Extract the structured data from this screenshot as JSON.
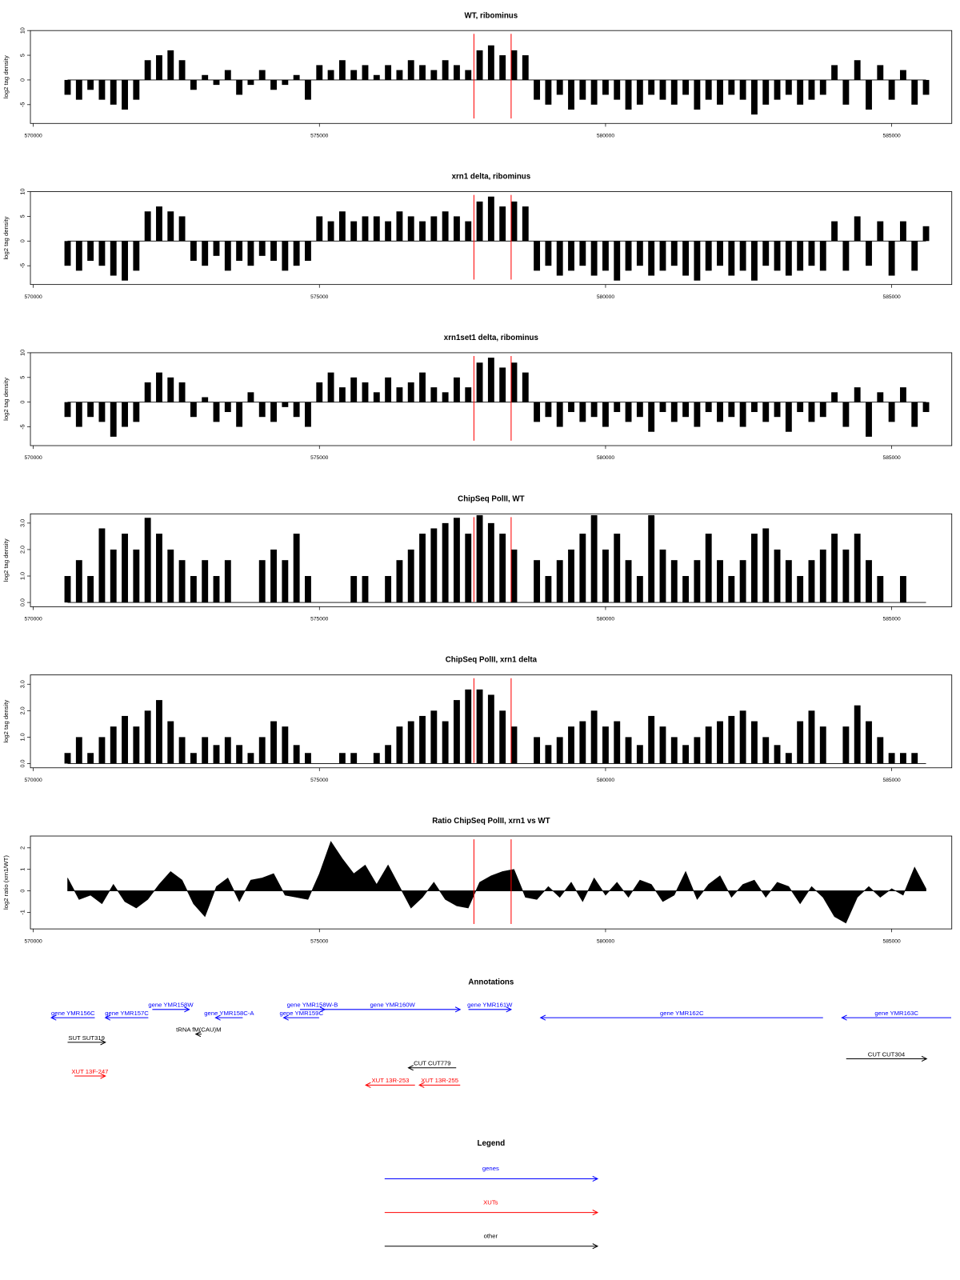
{
  "chart_data": [
    {
      "type": "bar",
      "title": "WT, ribominus",
      "ylabel": "log2 tag density",
      "color": "#000000",
      "x": [
        570600,
        570800,
        571000,
        571200,
        571400,
        571600,
        571800,
        572000,
        572200,
        572400,
        572600,
        572800,
        573000,
        573200,
        573400,
        573600,
        573800,
        574000,
        574200,
        574400,
        574600,
        574800,
        575000,
        575200,
        575400,
        575600,
        575800,
        576000,
        576200,
        576400,
        576600,
        576800,
        577000,
        577200,
        577400,
        577600,
        577800,
        578000,
        578200,
        578400,
        578600,
        578800,
        579000,
        579200,
        579400,
        579600,
        579800,
        580000,
        580200,
        580400,
        580600,
        580800,
        581000,
        581200,
        581400,
        581600,
        581800,
        582000,
        582200,
        582400,
        582600,
        582800,
        583000,
        583200,
        583400,
        583600,
        583800,
        584000,
        584200,
        584400,
        584600,
        584800,
        585000,
        585200,
        585400,
        585600
      ],
      "values": [
        -3,
        -4,
        -2,
        -4,
        -5,
        -6,
        -4,
        4,
        5,
        6,
        4,
        -2,
        1,
        -1,
        2,
        -3,
        -1,
        2,
        -2,
        -1,
        1,
        -4,
        3,
        2,
        4,
        2,
        3,
        1,
        3,
        2,
        4,
        3,
        2,
        4,
        3,
        2,
        6,
        7,
        5,
        6,
        5,
        -4,
        -5,
        -3,
        -6,
        -4,
        -5,
        -3,
        -4,
        -6,
        -5,
        -3,
        -4,
        -5,
        -3,
        -6,
        -4,
        -5,
        -3,
        -4,
        -7,
        -5,
        -4,
        -3,
        -5,
        -4,
        -3,
        3,
        -5,
        4,
        -6,
        3,
        -4,
        2,
        -5,
        -3
      ],
      "xlim": [
        569950,
        586050
      ],
      "xticks": [
        570000,
        575000,
        580000,
        585000
      ],
      "ylim": [
        -8.8,
        10
      ],
      "yticks": [
        -5,
        0,
        5,
        10
      ],
      "vlines": [
        577700,
        578350
      ],
      "vline_color": "#ff0000"
    },
    {
      "type": "bar",
      "title": "xrn1 delta, ribominus",
      "ylabel": "log2 tag density",
      "color": "#000000",
      "x": [
        570600,
        570800,
        571000,
        571200,
        571400,
        571600,
        571800,
        572000,
        572200,
        572400,
        572600,
        572800,
        573000,
        573200,
        573400,
        573600,
        573800,
        574000,
        574200,
        574400,
        574600,
        574800,
        575000,
        575200,
        575400,
        575600,
        575800,
        576000,
        576200,
        576400,
        576600,
        576800,
        577000,
        577200,
        577400,
        577600,
        577800,
        578000,
        578200,
        578400,
        578600,
        578800,
        579000,
        579200,
        579400,
        579600,
        579800,
        580000,
        580200,
        580400,
        580600,
        580800,
        581000,
        581200,
        581400,
        581600,
        581800,
        582000,
        582200,
        582400,
        582600,
        582800,
        583000,
        583200,
        583400,
        583600,
        583800,
        584000,
        584200,
        584400,
        584600,
        584800,
        585000,
        585200,
        585400,
        585600
      ],
      "values": [
        -5,
        -6,
        -4,
        -5,
        -7,
        -8,
        -6,
        6,
        7,
        6,
        5,
        -4,
        -5,
        -3,
        -6,
        -4,
        -5,
        -3,
        -4,
        -6,
        -5,
        -4,
        5,
        4,
        6,
        4,
        5,
        5,
        4,
        6,
        5,
        4,
        5,
        6,
        5,
        4,
        8,
        9,
        7,
        8,
        7,
        -6,
        -5,
        -7,
        -6,
        -5,
        -7,
        -6,
        -8,
        -6,
        -5,
        -7,
        -6,
        -5,
        -7,
        -8,
        -6,
        -5,
        -7,
        -6,
        -8,
        -5,
        -6,
        -7,
        -6,
        -5,
        -6,
        4,
        -6,
        5,
        -5,
        4,
        -7,
        4,
        -6,
        3
      ],
      "xlim": [
        569950,
        586050
      ],
      "xticks": [
        570000,
        575000,
        580000,
        585000
      ],
      "ylim": [
        -8.8,
        10
      ],
      "yticks": [
        -5,
        0,
        5,
        10
      ],
      "vlines": [
        577700,
        578350
      ],
      "vline_color": "#ff0000"
    },
    {
      "type": "bar",
      "title": "xrn1set1 delta, ribominus",
      "ylabel": "log2 tag density",
      "color": "#000000",
      "x": [
        570600,
        570800,
        571000,
        571200,
        571400,
        571600,
        571800,
        572000,
        572200,
        572400,
        572600,
        572800,
        573000,
        573200,
        573400,
        573600,
        573800,
        574000,
        574200,
        574400,
        574600,
        574800,
        575000,
        575200,
        575400,
        575600,
        575800,
        576000,
        576200,
        576400,
        576600,
        576800,
        577000,
        577200,
        577400,
        577600,
        577800,
        578000,
        578200,
        578400,
        578600,
        578800,
        579000,
        579200,
        579400,
        579600,
        579800,
        580000,
        580200,
        580400,
        580600,
        580800,
        581000,
        581200,
        581400,
        581600,
        581800,
        582000,
        582200,
        582400,
        582600,
        582800,
        583000,
        583200,
        583400,
        583600,
        583800,
        584000,
        584200,
        584400,
        584600,
        584800,
        585000,
        585200,
        585400,
        585600
      ],
      "values": [
        -3,
        -5,
        -3,
        -4,
        -7,
        -5,
        -4,
        4,
        6,
        5,
        4,
        -3,
        1,
        -4,
        -2,
        -5,
        2,
        -3,
        -4,
        -1,
        -3,
        -5,
        4,
        6,
        3,
        5,
        4,
        2,
        5,
        3,
        4,
        6,
        3,
        2,
        5,
        3,
        8,
        9,
        7,
        8,
        6,
        -4,
        -3,
        -5,
        -2,
        -4,
        -3,
        -5,
        -2,
        -4,
        -3,
        -6,
        -2,
        -4,
        -3,
        -5,
        -2,
        -4,
        -3,
        -5,
        -2,
        -4,
        -3,
        -6,
        -2,
        -4,
        -3,
        2,
        -5,
        3,
        -7,
        2,
        -4,
        3,
        -5,
        -2
      ],
      "xlim": [
        569950,
        586050
      ],
      "xticks": [
        570000,
        575000,
        580000,
        585000
      ],
      "ylim": [
        -8.8,
        10
      ],
      "yticks": [
        -5,
        0,
        5,
        10
      ],
      "vlines": [
        577700,
        578350
      ],
      "vline_color": "#ff0000"
    },
    {
      "type": "bar",
      "title": "ChipSeq PolII, WT",
      "ylabel": "log2 tag density",
      "color": "#000000",
      "x": [
        570600,
        570800,
        571000,
        571200,
        571400,
        571600,
        571800,
        572000,
        572200,
        572400,
        572600,
        572800,
        573000,
        573200,
        573400,
        573600,
        573800,
        574000,
        574200,
        574400,
        574600,
        574800,
        575000,
        575200,
        575400,
        575600,
        575800,
        576000,
        576200,
        576400,
        576600,
        576800,
        577000,
        577200,
        577400,
        577600,
        577800,
        578000,
        578200,
        578400,
        578600,
        578800,
        579000,
        579200,
        579400,
        579600,
        579800,
        580000,
        580200,
        580400,
        580600,
        580800,
        581000,
        581200,
        581400,
        581600,
        581800,
        582000,
        582200,
        582400,
        582600,
        582800,
        583000,
        583200,
        583400,
        583600,
        583800,
        584000,
        584200,
        584400,
        584600,
        584800,
        585000,
        585200,
        585400,
        585600
      ],
      "values": [
        1.0,
        1.6,
        1.0,
        2.8,
        2.0,
        2.6,
        2.0,
        3.2,
        2.6,
        2.0,
        1.6,
        1.0,
        1.6,
        1.0,
        1.6,
        0,
        0,
        1.6,
        2.0,
        1.6,
        2.6,
        1.0,
        0,
        0,
        0,
        1.0,
        1.0,
        0,
        1.0,
        1.6,
        2.0,
        2.6,
        2.8,
        3.0,
        3.2,
        2.6,
        3.3,
        3.0,
        2.6,
        2.0,
        0,
        1.6,
        1.0,
        1.6,
        2.0,
        2.6,
        3.3,
        2.0,
        2.6,
        1.6,
        1.0,
        3.3,
        2.0,
        1.6,
        1.0,
        1.6,
        2.6,
        1.6,
        1.0,
        1.6,
        2.6,
        2.8,
        2.0,
        1.6,
        1.0,
        1.6,
        2.0,
        2.6,
        2.0,
        2.6,
        1.6,
        1.0,
        0,
        1.0,
        0,
        0
      ],
      "xlim": [
        569950,
        586050
      ],
      "xticks": [
        570000,
        575000,
        580000,
        585000
      ],
      "ylim": [
        -0.16,
        3.35
      ],
      "yticks": [
        {
          "value": 0,
          "label": "0.0"
        },
        {
          "value": 1,
          "label": "1.0"
        },
        {
          "value": 2,
          "label": "2.0"
        },
        {
          "value": 3,
          "label": "3.0"
        }
      ],
      "vlines": [
        577700,
        578350
      ],
      "vline_color": "#ff0000"
    },
    {
      "type": "bar",
      "title": "ChipSeq PolII, xrn1 delta",
      "ylabel": "log2 tag density",
      "color": "#000000",
      "x": [
        570600,
        570800,
        571000,
        571200,
        571400,
        571600,
        571800,
        572000,
        572200,
        572400,
        572600,
        572800,
        573000,
        573200,
        573400,
        573600,
        573800,
        574000,
        574200,
        574400,
        574600,
        574800,
        575000,
        575200,
        575400,
        575600,
        575800,
        576000,
        576200,
        576400,
        576600,
        576800,
        577000,
        577200,
        577400,
        577600,
        577800,
        578000,
        578200,
        578400,
        578600,
        578800,
        579000,
        579200,
        579400,
        579600,
        579800,
        580000,
        580200,
        580400,
        580600,
        580800,
        581000,
        581200,
        581400,
        581600,
        581800,
        582000,
        582200,
        582400,
        582600,
        582800,
        583000,
        583200,
        583400,
        583600,
        583800,
        584000,
        584200,
        584400,
        584600,
        584800,
        585000,
        585200,
        585400,
        585600
      ],
      "values": [
        0.4,
        1.0,
        0.4,
        1.0,
        1.4,
        1.8,
        1.4,
        2.0,
        2.4,
        1.6,
        1.0,
        0.4,
        1.0,
        0.7,
        1.0,
        0.7,
        0.4,
        1.0,
        1.6,
        1.4,
        0.7,
        0.4,
        0,
        0,
        0.4,
        0.4,
        0,
        0.4,
        0.7,
        1.4,
        1.6,
        1.8,
        2.0,
        1.6,
        2.4,
        2.8,
        2.8,
        2.6,
        2.0,
        1.4,
        0,
        1.0,
        0.7,
        1.0,
        1.4,
        1.6,
        2.0,
        1.4,
        1.6,
        1.0,
        0.7,
        1.8,
        1.4,
        1.0,
        0.7,
        1.0,
        1.4,
        1.6,
        1.8,
        2.0,
        1.6,
        1.0,
        0.7,
        0.4,
        1.6,
        2.0,
        1.4,
        0,
        1.4,
        2.2,
        1.6,
        1.0,
        0.4,
        0.4,
        0.4,
        0
      ],
      "xlim": [
        569950,
        586050
      ],
      "xticks": [
        570000,
        575000,
        580000,
        585000
      ],
      "ylim": [
        -0.16,
        3.35
      ],
      "yticks": [
        {
          "value": 0,
          "label": "0.0"
        },
        {
          "value": 1,
          "label": "1.0"
        },
        {
          "value": 2,
          "label": "2.0"
        },
        {
          "value": 3,
          "label": "3.0"
        }
      ],
      "vlines": [
        577700,
        578350
      ],
      "vline_color": "#ff0000"
    },
    {
      "type": "area",
      "title": "Ratio ChipSeq PolII, xrn1 vs WT",
      "ylabel": "log2 ratio (xrn1/WT)",
      "color": "#000000",
      "x": [
        570600,
        570800,
        571000,
        571200,
        571400,
        571600,
        571800,
        572000,
        572200,
        572400,
        572600,
        572800,
        573000,
        573200,
        573400,
        573600,
        573800,
        574000,
        574200,
        574400,
        574600,
        574800,
        575000,
        575200,
        575400,
        575600,
        575800,
        576000,
        576200,
        576400,
        576600,
        576800,
        577000,
        577200,
        577400,
        577600,
        577800,
        578000,
        578200,
        578400,
        578600,
        578800,
        579000,
        579200,
        579400,
        579600,
        579800,
        580000,
        580200,
        580400,
        580600,
        580800,
        581000,
        581200,
        581400,
        581600,
        581800,
        582000,
        582200,
        582400,
        582600,
        582800,
        583000,
        583200,
        583400,
        583600,
        583800,
        584000,
        584200,
        584400,
        584600,
        584800,
        585000,
        585200,
        585400,
        585600
      ],
      "values": [
        0.6,
        -0.4,
        -0.2,
        -0.6,
        0.3,
        -0.5,
        -0.8,
        -0.4,
        0.3,
        0.9,
        0.5,
        -0.6,
        -1.2,
        0.2,
        0.6,
        -0.5,
        0.5,
        0.6,
        0.8,
        -0.2,
        -0.3,
        -0.4,
        0.8,
        2.3,
        1.5,
        0.8,
        1.2,
        0.3,
        1.2,
        0.2,
        -0.8,
        -0.3,
        0.4,
        -0.4,
        -0.7,
        -0.8,
        0.4,
        0.7,
        0.9,
        1.0,
        -0.3,
        -0.4,
        0.2,
        -0.3,
        0.4,
        -0.5,
        0.6,
        -0.2,
        0.4,
        -0.3,
        0.5,
        0.3,
        -0.5,
        -0.2,
        0.9,
        -0.4,
        0.3,
        0.7,
        -0.3,
        0.3,
        0.5,
        -0.3,
        0.4,
        0.2,
        -0.6,
        0.2,
        -0.3,
        -1.2,
        -1.5,
        -0.3,
        0.2,
        -0.3,
        0.1,
        -0.2,
        1.1,
        0.1
      ],
      "xlim": [
        569950,
        586050
      ],
      "xticks": [
        570000,
        575000,
        580000,
        585000
      ],
      "ylim": [
        -1.77,
        2.55
      ],
      "yticks": [
        -1,
        0,
        1,
        2
      ],
      "vlines": [
        577700,
        578350
      ],
      "vline_color": "#ff0000"
    }
  ],
  "annotations": {
    "title": "Annotations",
    "xlim": [
      569950,
      586050
    ],
    "features": [
      {
        "label": "gene YMR156C",
        "start": 570315,
        "end": 571075,
        "strand": "-",
        "color": "#0000ff"
      },
      {
        "label": "gene YMR157C",
        "start": 571260,
        "end": 572010,
        "strand": "-",
        "color": "#0000ff"
      },
      {
        "label": "gene YMR158W",
        "start": 572080,
        "end": 572725,
        "strand": "+",
        "color": "#0000ff"
      },
      {
        "label": "gene YMR158C-A",
        "start": 573185,
        "end": 573660,
        "strand": "-",
        "color": "#0000ff"
      },
      {
        "label": "tRNA fM(CAU)M",
        "start": 572840,
        "end": 572940,
        "strand": "-",
        "color": "#000000"
      },
      {
        "label": "SUT SUT319",
        "start": 570600,
        "end": 571260,
        "strand": "+",
        "color": "#000000"
      },
      {
        "label": "XUT 13F-247",
        "start": 570720,
        "end": 571260,
        "strand": "+",
        "color": "#ff0000"
      },
      {
        "label": "gene YMR158W-B",
        "start": 574660,
        "end": 575095,
        "strand": "+",
        "color": "#0000ff"
      },
      {
        "label": "gene YMR159C",
        "start": 574375,
        "end": 574995,
        "strand": "-",
        "color": "#0000ff"
      },
      {
        "label": "gene YMR160W",
        "start": 575095,
        "end": 577460,
        "strand": "+",
        "color": "#0000ff"
      },
      {
        "label": "gene YMR161W",
        "start": 577605,
        "end": 578350,
        "strand": "+",
        "color": "#0000ff"
      },
      {
        "label": "gene YMR162C",
        "start": 578865,
        "end": 583800,
        "strand": "-",
        "color": "#0000ff"
      },
      {
        "label": "gene YMR163C",
        "start": 584130,
        "end": 586040,
        "strand": "-",
        "color": "#0000ff"
      },
      {
        "label": "CUT CUT779",
        "start": 576555,
        "end": 577390,
        "strand": "-",
        "color": "#000000"
      },
      {
        "label": "XUT 13R-253",
        "start": 575810,
        "end": 576670,
        "strand": "-",
        "color": "#ff0000"
      },
      {
        "label": "XUT 13R-255",
        "start": 576745,
        "end": 577460,
        "strand": "-",
        "color": "#ff0000"
      },
      {
        "label": "CUT CUT304",
        "start": 584205,
        "end": 585610,
        "strand": "+",
        "color": "#000000"
      }
    ]
  },
  "legend": {
    "title": "Legend",
    "items": [
      {
        "label": "genes",
        "color": "#0000ff"
      },
      {
        "label": "XUTs",
        "color": "#ff0000"
      },
      {
        "label": "other",
        "color": "#000000"
      }
    ]
  }
}
